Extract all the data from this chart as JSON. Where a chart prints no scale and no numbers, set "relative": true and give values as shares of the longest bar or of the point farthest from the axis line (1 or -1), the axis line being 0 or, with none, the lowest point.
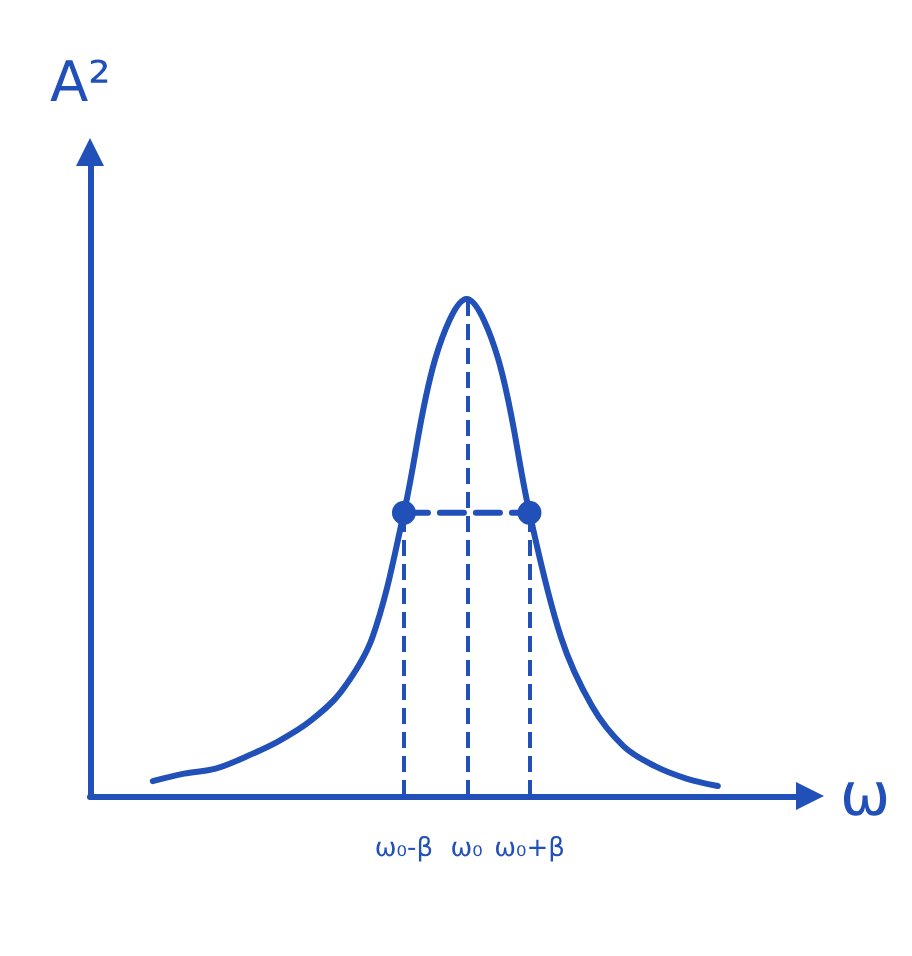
{
  "chart_data": {
    "type": "line",
    "xlabel": "ω",
    "ylabel": "A²",
    "relative": true,
    "categories": [
      null,
      null,
      null,
      null,
      null,
      null,
      null,
      null,
      null,
      null,
      "ω₀-β",
      null,
      "ω₀",
      null,
      "ω₀+β",
      null,
      null,
      null,
      null,
      null,
      null,
      null,
      null,
      null
    ],
    "series": [
      {
        "color": "#2050b8",
        "line_style": "solid",
        "marker": "none",
        "values": [
          null,
          null,
          0.03,
          0.045,
          0.055,
          0.08,
          0.11,
          0.15,
          0.21,
          0.32,
          0.57,
          0.88,
          1,
          0.88,
          0.57,
          0.32,
          0.18,
          0.1,
          0.06,
          0.035,
          0.02,
          null,
          null,
          null
        ]
      },
      {
        "color": "#2050b8",
        "line_style": "dashed",
        "marker": "circle",
        "x": [
          "ω₀-β",
          "ω₀+β"
        ],
        "values": [
          0.57,
          0.57
        ]
      }
    ],
    "ref_lines": [
      {
        "axis": "x",
        "value": "ω₀-β",
        "color": "#2050b8",
        "line_style": "dashed"
      },
      {
        "axis": "x",
        "value": "ω₀",
        "color": "#2050b8",
        "line_style": "dashed"
      },
      {
        "axis": "x",
        "value": "ω₀+β",
        "color": "#2050b8",
        "line_style": "dashed"
      }
    ]
  }
}
